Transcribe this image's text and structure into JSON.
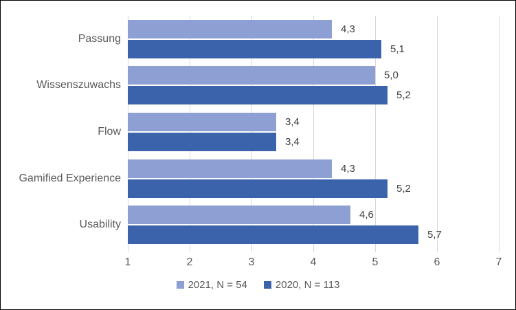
{
  "chart_data": {
    "type": "bar",
    "orientation": "horizontal",
    "title": "",
    "categories": [
      "Passung",
      "Wissenszuwachs",
      "Flow",
      "Gamified Experience",
      "Usability"
    ],
    "series": [
      {
        "name": "2021, N = 54",
        "color": "#8EA0D3",
        "values": [
          4.3,
          5.0,
          3.4,
          4.3,
          4.6
        ],
        "value_labels": [
          "4,3",
          "5,0",
          "3,4",
          "4,3",
          "4,6"
        ]
      },
      {
        "name": "2020, N = 113",
        "color": "#3B63AB",
        "values": [
          5.1,
          5.2,
          3.4,
          5.2,
          5.7
        ],
        "value_labels": [
          "5,1",
          "5,2",
          "3,4",
          "5,2",
          "5,7"
        ]
      }
    ],
    "x_axis": {
      "min": 1,
      "max": 7,
      "tick_labels": [
        "1",
        "2",
        "3",
        "4",
        "5",
        "6",
        "7"
      ]
    },
    "grid": true,
    "legend_position": "bottom",
    "colors": {
      "gridline": "#D9D9D9",
      "axis_text": "#595959",
      "category_text": "#595959",
      "value_label_text": "#404040",
      "legend_text": "#595959",
      "chart_border": "#000000",
      "background": "#FFFFFF"
    }
  }
}
